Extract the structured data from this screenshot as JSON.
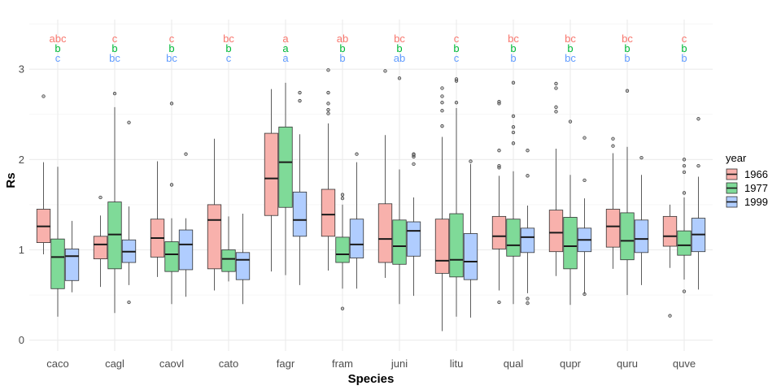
{
  "chart_data": {
    "type": "boxplot",
    "xlabel": "Species",
    "ylabel": "Rs",
    "ylim": [
      -0.12,
      3.55
    ],
    "yticks": [
      0,
      1,
      2,
      3
    ],
    "grid": true,
    "legend_title": "year",
    "legend_position": "right",
    "categories": [
      "caco",
      "cagl",
      "caovl",
      "cato",
      "fagr",
      "fram",
      "juni",
      "litu",
      "qual",
      "qupr",
      "quru",
      "quve"
    ],
    "series": [
      {
        "name": "1966",
        "color": "#F8766D",
        "fill": "#F8B1AC",
        "boxes": [
          {
            "whisker_low": 0.95,
            "q1": 1.08,
            "median": 1.26,
            "q3": 1.45,
            "whisker_high": 1.97,
            "outliers": [
              2.7
            ]
          },
          {
            "whisker_low": 0.59,
            "q1": 0.9,
            "median": 1.06,
            "q3": 1.15,
            "whisker_high": 1.38,
            "outliers": [
              1.58
            ]
          },
          {
            "whisker_low": 0.7,
            "q1": 0.92,
            "median": 1.13,
            "q3": 1.34,
            "whisker_high": 1.98,
            "outliers": []
          },
          {
            "whisker_low": 0.55,
            "q1": 0.79,
            "median": 1.33,
            "q3": 1.5,
            "whisker_high": 2.23,
            "outliers": []
          },
          {
            "whisker_low": 0.76,
            "q1": 1.38,
            "median": 1.79,
            "q3": 2.29,
            "whisker_high": 2.78,
            "outliers": []
          },
          {
            "whisker_low": 0.77,
            "q1": 1.15,
            "median": 1.39,
            "q3": 1.67,
            "whisker_high": 2.4,
            "outliers": [
              2.51,
              2.55,
              2.62,
              2.74,
              2.99
            ]
          },
          {
            "whisker_low": 0.69,
            "q1": 0.86,
            "median": 1.12,
            "q3": 1.51,
            "whisker_high": 2.27,
            "outliers": [
              2.98
            ]
          },
          {
            "whisker_low": 0.1,
            "q1": 0.74,
            "median": 0.88,
            "q3": 1.34,
            "whisker_high": 2.25,
            "outliers": [
              2.37,
              2.54,
              2.63,
              2.7,
              2.79
            ]
          },
          {
            "whisker_low": 0.55,
            "q1": 1.01,
            "median": 1.15,
            "q3": 1.37,
            "whisker_high": 1.82,
            "outliers": [
              0.42,
              1.91,
              1.93,
              2.1,
              2.62,
              2.64
            ]
          },
          {
            "whisker_low": 0.71,
            "q1": 0.98,
            "median": 1.19,
            "q3": 1.44,
            "whisker_high": 2.12,
            "outliers": [
              2.53,
              2.58,
              2.79,
              2.84
            ]
          },
          {
            "whisker_low": 0.79,
            "q1": 1.03,
            "median": 1.26,
            "q3": 1.45,
            "whisker_high": 2.07,
            "outliers": [
              2.15,
              2.23
            ]
          },
          {
            "whisker_low": 0.8,
            "q1": 1.04,
            "median": 1.15,
            "q3": 1.37,
            "whisker_high": 1.5,
            "outliers": [
              0.27
            ]
          }
        ]
      },
      {
        "name": "1977",
        "color": "#00BA38",
        "fill": "#7FDA98",
        "boxes": [
          {
            "whisker_low": 0.26,
            "q1": 0.57,
            "median": 0.92,
            "q3": 1.12,
            "whisker_high": 1.92,
            "outliers": []
          },
          {
            "whisker_low": 0.3,
            "q1": 0.79,
            "median": 1.17,
            "q3": 1.53,
            "whisker_high": 2.58,
            "outliers": [
              2.73
            ]
          },
          {
            "whisker_low": 0.4,
            "q1": 0.76,
            "median": 0.95,
            "q3": 1.09,
            "whisker_high": 1.35,
            "outliers": [
              1.72,
              2.62
            ]
          },
          {
            "whisker_low": 0.65,
            "q1": 0.76,
            "median": 0.9,
            "q3": 1.0,
            "whisker_high": 1.37,
            "outliers": []
          },
          {
            "whisker_low": 0.72,
            "q1": 1.47,
            "median": 1.97,
            "q3": 2.36,
            "whisker_high": 2.85,
            "outliers": []
          },
          {
            "whisker_low": 0.57,
            "q1": 0.86,
            "median": 0.95,
            "q3": 1.14,
            "whisker_high": 1.5,
            "outliers": [
              0.35,
              1.57,
              1.61
            ]
          },
          {
            "whisker_low": 0.4,
            "q1": 0.84,
            "median": 1.04,
            "q3": 1.33,
            "whisker_high": 1.89,
            "outliers": [
              2.9
            ]
          },
          {
            "whisker_low": 0.26,
            "q1": 0.7,
            "median": 0.89,
            "q3": 1.4,
            "whisker_high": 2.57,
            "outliers": [
              2.63,
              2.87,
              2.89
            ]
          },
          {
            "whisker_low": 0.4,
            "q1": 0.93,
            "median": 1.05,
            "q3": 1.34,
            "whisker_high": 1.87,
            "outliers": [
              2.18,
              2.3,
              2.36,
              2.48,
              2.85
            ]
          },
          {
            "whisker_low": 0.39,
            "q1": 0.79,
            "median": 1.04,
            "q3": 1.36,
            "whisker_high": 1.83,
            "outliers": [
              2.42
            ]
          },
          {
            "whisker_low": 0.5,
            "q1": 0.89,
            "median": 1.1,
            "q3": 1.41,
            "whisker_high": 2.14,
            "outliers": [
              2.76
            ]
          },
          {
            "whisker_low": 0.67,
            "q1": 0.94,
            "median": 1.05,
            "q3": 1.21,
            "whisker_high": 1.58,
            "outliers": [
              0.54,
              1.63,
              1.86,
              1.93,
              2.0
            ]
          }
        ]
      },
      {
        "name": "1999",
        "color": "#619CFF",
        "fill": "#B0CDFF",
        "boxes": [
          {
            "whisker_low": 0.53,
            "q1": 0.66,
            "median": 0.93,
            "q3": 1.01,
            "whisker_high": 1.32,
            "outliers": []
          },
          {
            "whisker_low": 0.61,
            "q1": 0.86,
            "median": 0.98,
            "q3": 1.11,
            "whisker_high": 1.48,
            "outliers": [
              0.42,
              2.41
            ]
          },
          {
            "whisker_low": 0.48,
            "q1": 0.78,
            "median": 1.06,
            "q3": 1.22,
            "whisker_high": 1.35,
            "outliers": [
              2.06
            ]
          },
          {
            "whisker_low": 0.4,
            "q1": 0.67,
            "median": 0.89,
            "q3": 0.97,
            "whisker_high": 1.4,
            "outliers": []
          },
          {
            "whisker_low": 0.61,
            "q1": 1.15,
            "median": 1.33,
            "q3": 1.64,
            "whisker_high": 2.28,
            "outliers": [
              2.65,
              2.74
            ]
          },
          {
            "whisker_low": 0.57,
            "q1": 0.91,
            "median": 1.06,
            "q3": 1.34,
            "whisker_high": 1.97,
            "outliers": [
              2.06
            ]
          },
          {
            "whisker_low": 0.49,
            "q1": 0.93,
            "median": 1.21,
            "q3": 1.31,
            "whisker_high": 1.58,
            "outliers": [
              1.95,
              2.03,
              2.05,
              2.06
            ]
          },
          {
            "whisker_low": 0.25,
            "q1": 0.67,
            "median": 0.87,
            "q3": 1.18,
            "whisker_high": 1.95,
            "outliers": [
              1.98
            ]
          },
          {
            "whisker_low": 0.52,
            "q1": 0.97,
            "median": 1.14,
            "q3": 1.24,
            "whisker_high": 1.49,
            "outliers": [
              0.41,
              0.46,
              1.82,
              2.1
            ]
          },
          {
            "whisker_low": 0.51,
            "q1": 0.98,
            "median": 1.11,
            "q3": 1.24,
            "whisker_high": 1.57,
            "outliers": [
              0.51,
              1.77,
              2.24
            ]
          },
          {
            "whisker_low": 0.61,
            "q1": 0.97,
            "median": 1.12,
            "q3": 1.33,
            "whisker_high": 1.83,
            "outliers": [
              2.02
            ]
          },
          {
            "whisker_low": 0.56,
            "q1": 0.98,
            "median": 1.17,
            "q3": 1.35,
            "whisker_high": 1.81,
            "outliers": [
              1.93,
              2.45
            ]
          }
        ]
      }
    ],
    "annotations": {
      "1966": [
        "abc",
        "c",
        "c",
        "bc",
        "a",
        "ab",
        "bc",
        "c",
        "bc",
        "bc",
        "bc",
        "c"
      ],
      "1977": [
        "b",
        "b",
        "b",
        "b",
        "a",
        "b",
        "b",
        "b",
        "b",
        "b",
        "b",
        "b"
      ],
      "1999": [
        "c",
        "bc",
        "bc",
        "c",
        "a",
        "b",
        "ab",
        "c",
        "b",
        "bc",
        "b",
        "b"
      ]
    }
  }
}
